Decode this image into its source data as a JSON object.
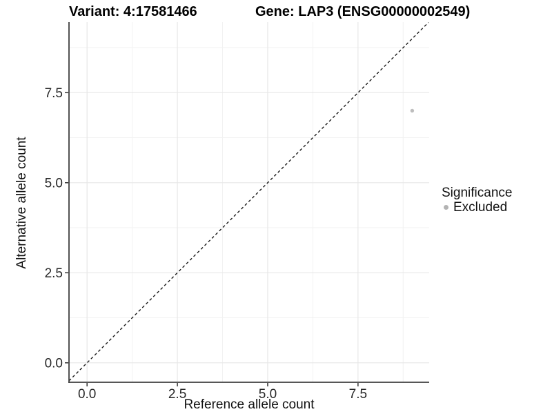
{
  "titles": {
    "variant": "Variant: 4:17581466",
    "gene": "Gene: LAP3 (ENSG00000002549)"
  },
  "chart_data": {
    "type": "scatter",
    "title": "Variant: 4:17581466 — Gene: LAP3 (ENSG00000002549)",
    "xlabel": "Reference allele count",
    "ylabel": "Alternative allele count",
    "xticks": [
      0.0,
      2.5,
      5.0,
      7.5
    ],
    "yticks": [
      0.0,
      2.5,
      5.0,
      7.5
    ],
    "xtick_labels": [
      "0.0",
      "2.5",
      "5.0",
      "7.5"
    ],
    "ytick_labels": [
      "0.0",
      "2.5",
      "5.0",
      "7.5"
    ],
    "xminor": [
      1.25,
      3.75,
      6.25,
      8.75
    ],
    "yminor": [
      1.25,
      3.75,
      6.25,
      8.75
    ],
    "xlim": [
      -0.5,
      9.47
    ],
    "ylim": [
      -0.54,
      9.46
    ],
    "grid": {
      "major": true,
      "minor": true,
      "major_color": "#e7e7e7",
      "minor_color": "#f2f2f2"
    },
    "axis_line_color": "#3f3f3f",
    "tick_color": "#333333",
    "tick_label_color": "#262626",
    "reference_line": {
      "equation": "y = x",
      "style": "dashed",
      "color": "#1a1a1a",
      "from": [
        -0.5,
        -0.5
      ],
      "to": [
        9.45,
        9.45
      ]
    },
    "series": [
      {
        "name": "Excluded",
        "color": "#bdbdbd",
        "point_radius": 2.7,
        "points": [
          [
            9,
            7
          ]
        ]
      }
    ],
    "legend": {
      "title": "Significance",
      "position": "right",
      "entries": [
        {
          "label": "Excluded",
          "color": "#b3b3b3"
        }
      ]
    }
  }
}
